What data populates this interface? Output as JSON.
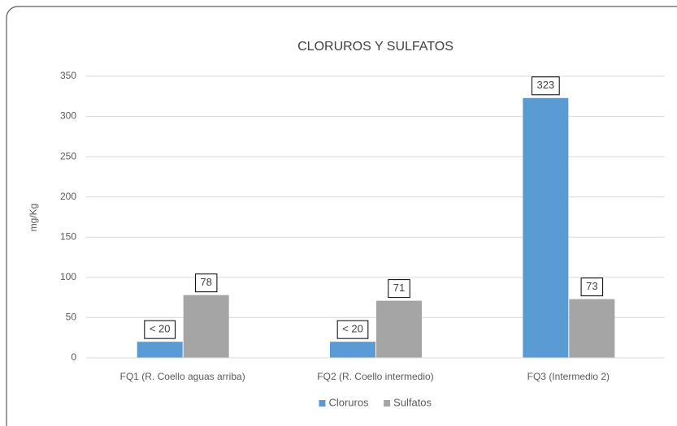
{
  "chart_data": {
    "type": "bar",
    "title": "CLORUROS Y SULFATOS",
    "y_label": "mg/Kg",
    "categories": [
      "FQ1 (R. Coello aguas arriba)",
      "FQ2 (R. Coello intermedio)",
      "FQ3 (Intermedio 2)"
    ],
    "series": [
      {
        "name": "Cloruros",
        "color": "#5b9bd5",
        "values": [
          20,
          20,
          323
        ],
        "value_labels": [
          "< 20",
          "< 20",
          "323"
        ]
      },
      {
        "name": "Sulfatos",
        "color": "#a5a5a5",
        "values": [
          78,
          71,
          73
        ]
      }
    ],
    "ylim": [
      0,
      350
    ],
    "yticks": [
      0,
      50,
      100,
      150,
      200,
      250,
      300,
      350
    ],
    "grid": true,
    "legend": "bottom"
  }
}
